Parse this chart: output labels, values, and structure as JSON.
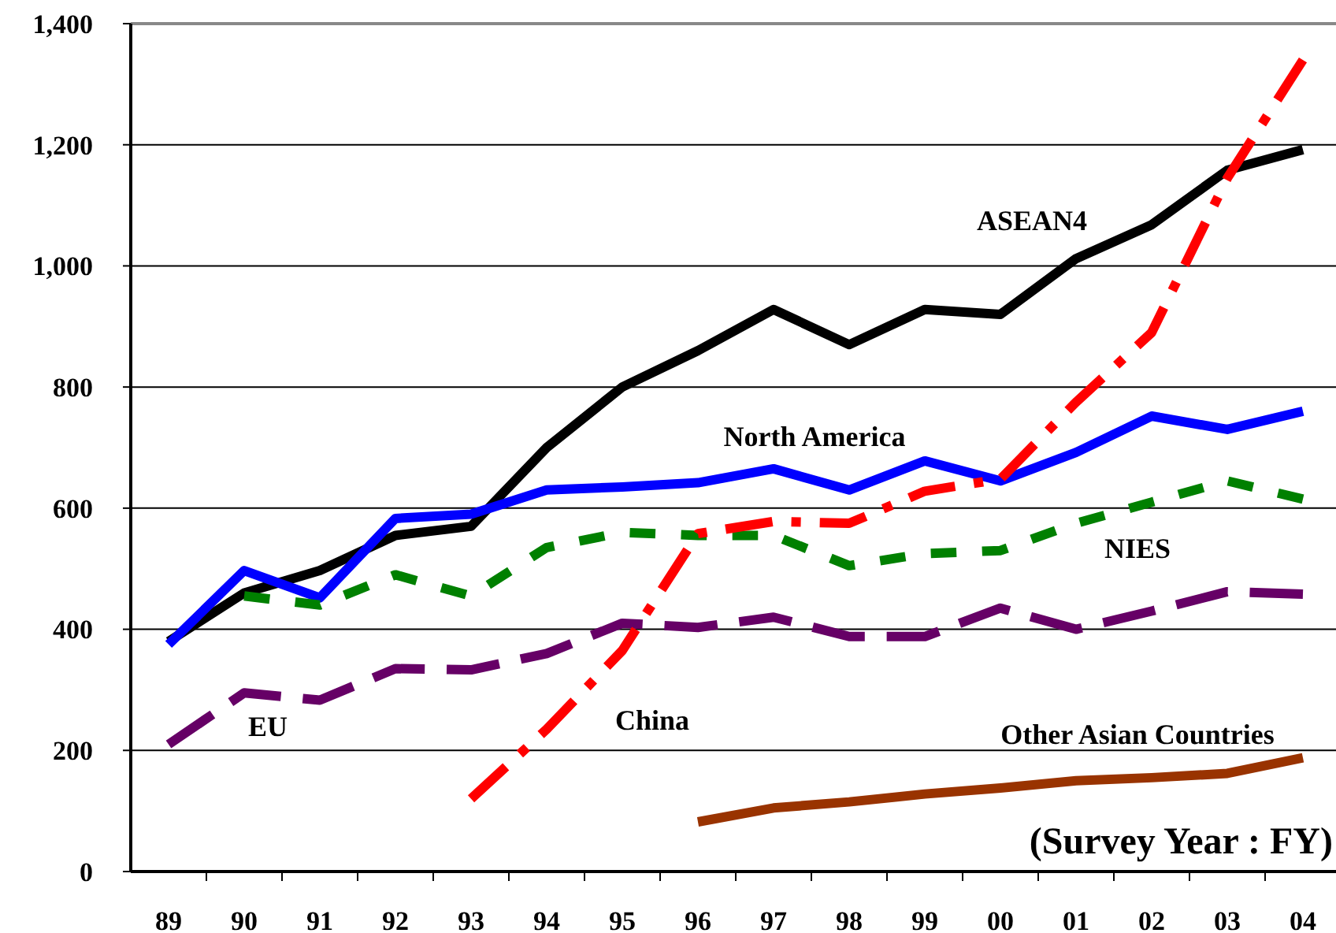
{
  "chart_data": {
    "type": "line",
    "xlabel": "(Survey Year : FY)",
    "categories": [
      "89",
      "90",
      "91",
      "92",
      "93",
      "94",
      "95",
      "96",
      "97",
      "98",
      "99",
      "00",
      "01",
      "02",
      "03",
      "04"
    ],
    "ylim": [
      0,
      1400
    ],
    "yticks": [
      0,
      {
        "value": 200,
        "label": "200"
      },
      {
        "value": 400,
        "label": "400"
      },
      {
        "value": 600,
        "label": "600"
      },
      {
        "value": 800,
        "label": "800"
      },
      {
        "value": 1000,
        "label": "1,000"
      },
      {
        "value": 1200,
        "label": "1,200"
      },
      {
        "value": 1400,
        "label": "1,400"
      }
    ],
    "grid": "y",
    "marker": "none",
    "series": [
      {
        "name": "ASEAN4",
        "color": "#000000",
        "line_style": "solid",
        "values": [
          380,
          460,
          497,
          555,
          570,
          700,
          800,
          860,
          928,
          870,
          928,
          920,
          1012,
          1068,
          1158,
          1192
        ]
      },
      {
        "name": "North America",
        "color": "#0000ff",
        "line_style": "solid",
        "values": [
          375,
          497,
          452,
          583,
          590,
          630,
          635,
          642,
          665,
          630,
          678,
          645,
          692,
          752,
          730,
          760
        ]
      },
      {
        "name": "NIES",
        "color": "#008000",
        "line_style": "dotted",
        "values": [
          null,
          455,
          440,
          490,
          455,
          535,
          560,
          555,
          555,
          505,
          525,
          530,
          575,
          610,
          645,
          615
        ]
      },
      {
        "name": "EU",
        "color": "#660066",
        "line_style": "dashed",
        "values": [
          210,
          295,
          283,
          335,
          333,
          360,
          410,
          403,
          420,
          388,
          388,
          435,
          400,
          430,
          462,
          458
        ]
      },
      {
        "name": "China",
        "color": "#ff0000",
        "line_style": "dashed",
        "values": [
          null,
          null,
          null,
          null,
          120,
          235,
          365,
          558,
          578,
          575,
          628,
          648,
          775,
          890,
          1145,
          1340
        ]
      },
      {
        "name": "Other Asian Countries",
        "color": "#993300",
        "line_style": "solid",
        "values": [
          null,
          null,
          null,
          null,
          null,
          null,
          null,
          82,
          105,
          115,
          128,
          138,
          150,
          155,
          162,
          188
        ]
      }
    ]
  }
}
